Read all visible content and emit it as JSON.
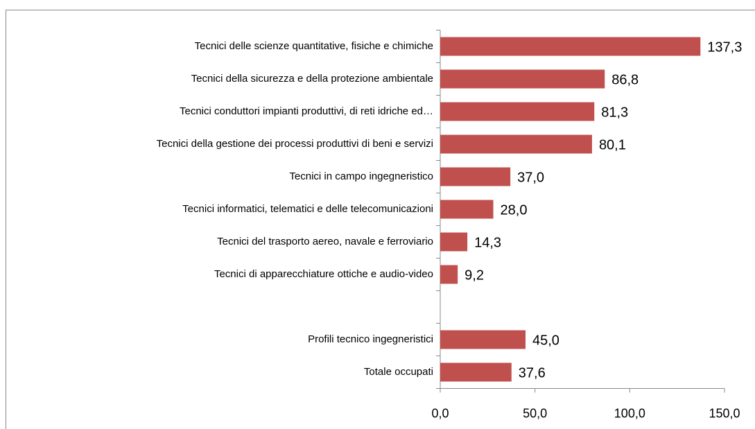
{
  "chart_data": {
    "type": "bar",
    "orientation": "horizontal",
    "categories": [
      "Tecnici delle scienze quantitative, fisiche e chimiche",
      "Tecnici della sicurezza e della protezione ambientale",
      "Tecnici conduttori impianti produttivi, di reti idriche ed…",
      "Tecnici della gestione dei processi produttivi di beni e servizi",
      "Tecnici in campo ingegneristico",
      "Tecnici informatici, telematici e delle telecomunicazioni",
      "Tecnici del trasporto aereo, navale e ferroviario",
      "Tecnici di apparecchiature ottiche e audio-video",
      null,
      "Profili tecnico ingegneristici",
      "Totale occupati"
    ],
    "values": [
      137.3,
      86.8,
      81.3,
      80.1,
      37.0,
      28.0,
      14.3,
      9.2,
      null,
      45.0,
      37.6
    ],
    "value_labels": [
      "137,3",
      "86,8",
      "81,3",
      "80,1",
      "37,0",
      "28,0",
      "14,3",
      "9,2",
      null,
      "45,0",
      "37,6"
    ],
    "color": "#c0504d",
    "xlim": [
      0,
      150
    ],
    "xticks": [
      {
        "value": 0,
        "label": "0,0"
      },
      {
        "value": 50,
        "label": "50,0"
      },
      {
        "value": 100,
        "label": "100,0"
      },
      {
        "value": 150,
        "label": "150,0"
      }
    ],
    "grid": false
  }
}
